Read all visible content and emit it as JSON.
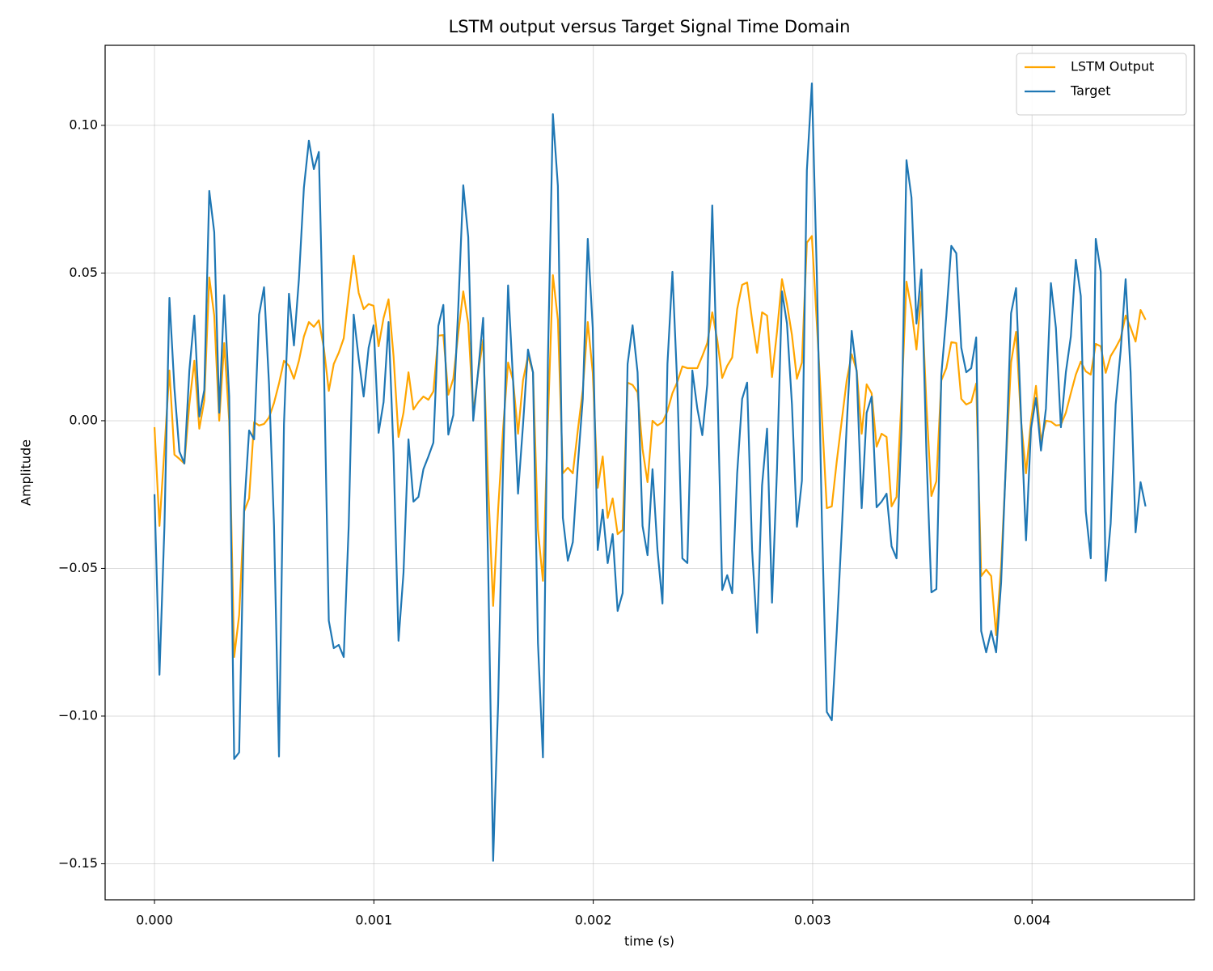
{
  "chart_data": {
    "type": "line",
    "title": "LSTM output versus Target Signal Time Domain",
    "x_label": "time (s)",
    "y_label": "Amplitude",
    "x": [
      0,
      2.27e-05,
      4.54e-05,
      6.81e-05,
      9.08e-05,
      0.0001135,
      0.0001362,
      0.0001589,
      0.0001816,
      0.0002043,
      0.000227,
      0.0002497,
      0.0002724,
      0.0002951,
      0.0003178,
      0.0003405,
      0.0003632,
      0.0003859,
      0.0004086,
      0.0004313,
      0.000454,
      0.0004767,
      0.0004994,
      0.0005221,
      0.0005448,
      0.0005675,
      0.0005902,
      0.0006129,
      0.0006356,
      0.0006583,
      0.000681,
      0.0007037,
      0.0007264,
      0.0007491,
      0.0007718,
      0.0007945,
      0.0008172,
      0.0008399,
      0.0008626,
      0.0008853,
      0.000908,
      0.0009307,
      0.0009534,
      0.0009761,
      0.0009988,
      0.0010215,
      0.0010442,
      0.0010669,
      0.0010896,
      0.0011123,
      0.001135,
      0.0011577,
      0.0011804,
      0.0012031,
      0.0012258,
      0.0012485,
      0.0012712,
      0.0012939,
      0.0013166,
      0.0013393,
      0.001362,
      0.0013847,
      0.0014074,
      0.0014301,
      0.0014528,
      0.0014755,
      0.0014982,
      0.0015209,
      0.0015436,
      0.0015663,
      0.001589,
      0.0016117,
      0.0016344,
      0.0016571,
      0.0016798,
      0.0017025,
      0.0017252,
      0.0017479,
      0.0017706,
      0.0017933,
      0.001816,
      0.0018387,
      0.0018614,
      0.0018841,
      0.0019068,
      0.0019295,
      0.0019522,
      0.0019749,
      0.0019976,
      0.0020203,
      0.002043,
      0.0020657,
      0.0020884,
      0.0021111,
      0.0021338,
      0.0021565,
      0.0021792,
      0.0022019,
      0.0022246,
      0.0022473,
      0.00227,
      0.0022927,
      0.0023154,
      0.0023381,
      0.0023608,
      0.0023835,
      0.0024062,
      0.0024289,
      0.0024516,
      0.0024743,
      0.002497,
      0.0025197,
      0.0025424,
      0.0025651,
      0.0025878,
      0.0026105,
      0.0026332,
      0.0026559,
      0.0026786,
      0.0027013,
      0.002724,
      0.0027467,
      0.0027694,
      0.0027921,
      0.0028148,
      0.0028375,
      0.0028602,
      0.0028829,
      0.0029056,
      0.0029283,
      0.002951,
      0.0029737,
      0.0029964,
      0.0030191,
      0.0030418,
      0.0030645,
      0.0030872,
      0.0031099,
      0.0031326,
      0.0031553,
      0.003178,
      0.0032007,
      0.0032234,
      0.0032461,
      0.0032688,
      0.0032915,
      0.0033142,
      0.0033369,
      0.0033596,
      0.0033823,
      0.003405,
      0.0034277,
      0.0034504,
      0.0034731,
      0.0034958,
      0.0035185,
      0.0035412,
      0.0035639,
      0.0035866,
      0.0036093,
      0.003632,
      0.0036547,
      0.0036774,
      0.0037001,
      0.0037228,
      0.0037455,
      0.0037682,
      0.0037909,
      0.0038136,
      0.0038363,
      0.003859,
      0.0038817,
      0.0039044,
      0.0039271,
      0.0039498,
      0.0039725,
      0.0039952,
      0.0040179,
      0.0040406,
      0.0040633,
      0.004086,
      0.0041087,
      0.0041314,
      0.0041541,
      0.0041768,
      0.0041995,
      0.0042222,
      0.0042449,
      0.0042676,
      0.0042903,
      0.004313,
      0.0043357,
      0.0043584,
      0.0043811,
      0.0044038,
      0.0044265,
      0.0044492,
      0.0044719,
      0.0044946,
      0.0045173
    ],
    "series": [
      {
        "name": "LSTM Output",
        "color": "#ffa500",
        "values": [
          -0.0022,
          -0.0356,
          -0.0096,
          0.017,
          -0.0115,
          -0.0129,
          -0.0145,
          0.0055,
          0.0203,
          -0.0027,
          0.0068,
          0.0485,
          0.0356,
          0,
          0.0263,
          0,
          -0.08,
          -0.0658,
          -0.0307,
          -0.0263,
          -0.0005,
          -0.0016,
          -0.0011,
          0.0011,
          0.006,
          0.0126,
          0.0203,
          0.0186,
          0.0142,
          0.0203,
          0.0285,
          0.0334,
          0.0318,
          0.034,
          0.0247,
          0.0101,
          0.0192,
          0.023,
          0.0279,
          0.0427,
          0.0559,
          0.0433,
          0.0378,
          0.0395,
          0.0389,
          0.0252,
          0.0348,
          0.0411,
          0.0219,
          -0.0055,
          0.0027,
          0.0164,
          0.0038,
          0.0063,
          0.0082,
          0.0071,
          0.0099,
          0.0288,
          0.029,
          0.0088,
          0.0142,
          0.0296,
          0.0438,
          0.0329,
          0.0027,
          0.0164,
          0.0274,
          -0.0219,
          -0.0627,
          -0.0301,
          -0.0027,
          0.0197,
          0.0137,
          -0.0044,
          0.0137,
          0.0219,
          0.0164,
          -0.037,
          -0.0542,
          0,
          0.0493,
          0.0342,
          -0.0178,
          -0.0159,
          -0.0178,
          -0.0033,
          0.0104,
          0.0334,
          0.0164,
          -0.0227,
          -0.0121,
          -0.0329,
          -0.0263,
          -0.0384,
          -0.037,
          0.0129,
          0.0121,
          0.0096,
          -0.0096,
          -0.0208,
          0,
          -0.0016,
          -0.0005,
          0.0033,
          0.0093,
          0.0132,
          0.0184,
          0.0178,
          0.0178,
          0.0178,
          0.0219,
          0.0263,
          0.0367,
          0.0274,
          0.0145,
          0.0186,
          0.0214,
          0.0378,
          0.046,
          0.0468,
          0.034,
          0.023,
          0.0367,
          0.0356,
          0.0148,
          0.0301,
          0.0479,
          0.0395,
          0.029,
          0.0142,
          0.0197,
          0.0603,
          0.0625,
          0.0329,
          0.0022,
          -0.0296,
          -0.029,
          -0.0137,
          0,
          0.0137,
          0.0225,
          0.017,
          -0.0044,
          0.0123,
          0.0093,
          -0.0088,
          -0.0044,
          -0.0055,
          -0.029,
          -0.0258,
          0.0071,
          0.0471,
          0.0378,
          0.0241,
          0.0438,
          0.0055,
          -0.0255,
          -0.0205,
          0.0137,
          0.0178,
          0.0266,
          0.0263,
          0.0074,
          0.0055,
          0.0063,
          0.0126,
          -0.0526,
          -0.0504,
          -0.0526,
          -0.0726,
          -0.0493,
          -0.0137,
          0.0197,
          0.0301,
          0,
          -0.0178,
          0,
          0.0118,
          -0.0068,
          0,
          -0.0003,
          -0.0016,
          -0.0014,
          0.0027,
          0.0093,
          0.0156,
          0.02,
          0.0167,
          0.0156,
          0.026,
          0.0252,
          0.0162,
          0.0219,
          0.0247,
          0.0279,
          0.0356,
          0.0315,
          0.0268,
          0.0375,
          0.0342
        ]
      },
      {
        "name": "Target",
        "color": "#1f77b4",
        "values": [
          -0.0249,
          -0.086,
          -0.0356,
          0.0416,
          0.011,
          -0.0104,
          -0.0145,
          0.017,
          0.0356,
          0.0014,
          0.0104,
          0.0778,
          0.0638,
          0.0027,
          0.0425,
          0.0082,
          -0.1145,
          -0.1123,
          -0.0301,
          -0.0033,
          -0.0063,
          0.0359,
          0.0452,
          0.0123,
          -0.0356,
          -0.1137,
          -0.0011,
          0.043,
          0.0255,
          0.0479,
          0.0789,
          0.0948,
          0.0852,
          0.091,
          0.0205,
          -0.0677,
          -0.077,
          -0.0759,
          -0.08,
          -0.0356,
          0.0359,
          0.0211,
          0.0082,
          0.0247,
          0.0323,
          -0.0041,
          0.0063,
          0.0334,
          -0.011,
          -0.0745,
          -0.0515,
          -0.0063,
          -0.0274,
          -0.0258,
          -0.0164,
          -0.0121,
          -0.0074,
          0.0321,
          0.0392,
          -0.0047,
          0.0019,
          0.0384,
          0.0797,
          0.0622,
          0,
          0.017,
          0.0348,
          -0.0493,
          -0.149,
          -0.0959,
          -0.0145,
          0.0458,
          0.0137,
          -0.0247,
          -0.0014,
          0.0241,
          0.0164,
          -0.0753,
          -0.114,
          0.0205,
          0.1038,
          0.0795,
          -0.0329,
          -0.0474,
          -0.0411,
          -0.0151,
          0.0074,
          0.0616,
          0.0315,
          -0.0438,
          -0.0301,
          -0.0482,
          -0.0384,
          -0.0644,
          -0.0584,
          0.0192,
          0.0323,
          0.0164,
          -0.0356,
          -0.0455,
          -0.0164,
          -0.0438,
          -0.0619,
          0.0192,
          0.0504,
          0.011,
          -0.0466,
          -0.0482,
          0.017,
          0.0041,
          -0.0049,
          0.0123,
          0.0729,
          0.0137,
          -0.0573,
          -0.0523,
          -0.0584,
          -0.0178,
          0.0074,
          0.0129,
          -0.0438,
          -0.0718,
          -0.0219,
          -0.0027,
          -0.0616,
          -0.0164,
          0.0438,
          0.0329,
          0.0055,
          -0.0359,
          -0.0203,
          0.0849,
          0.1142,
          0.0493,
          -0.0329,
          -0.0986,
          -0.1014,
          -0.0712,
          -0.0373,
          -0.0014,
          0.0304,
          0.0164,
          -0.0296,
          0.0027,
          0.0082,
          -0.0293,
          -0.0274,
          -0.0247,
          -0.0425,
          -0.0466,
          -0.0027,
          0.0882,
          0.0756,
          0.0329,
          0.0512,
          -0.011,
          -0.0581,
          -0.057,
          0.0156,
          0.0356,
          0.0592,
          0.0567,
          0.0247,
          0.0164,
          0.0178,
          0.0282,
          -0.0712,
          -0.0784,
          -0.0712,
          -0.0784,
          -0.0548,
          -0.0123,
          0.0364,
          0.0449,
          0.0014,
          -0.0405,
          -0.0027,
          0.0077,
          -0.0101,
          0.0041,
          0.0466,
          0.0315,
          -0.0022,
          0.0164,
          0.0285,
          0.0545,
          0.0422,
          -0.0307,
          -0.0466,
          0.0616,
          0.0504,
          -0.0542,
          -0.0348,
          0.0055,
          0.0236,
          0.0479,
          0.0164,
          -0.0378,
          -0.0208,
          -0.029
        ]
      }
    ],
    "xlim": [
      -0.000225,
      0.00474
    ],
    "ylim": [
      -0.1622,
      0.1271
    ],
    "xticks": [
      {
        "value": 0,
        "label": "0.000"
      },
      {
        "value": 0.001,
        "label": "0.001"
      },
      {
        "value": 0.002,
        "label": "0.002"
      },
      {
        "value": 0.003,
        "label": "0.003"
      },
      {
        "value": 0.004,
        "label": "0.004"
      }
    ],
    "yticks": [
      {
        "value": -0.15,
        "label": "−0.15"
      },
      {
        "value": -0.1,
        "label": "−0.10"
      },
      {
        "value": -0.05,
        "label": "−0.05"
      },
      {
        "value": 0,
        "label": "0.00"
      },
      0.05,
      {
        "value": 0.1,
        "label": "0.10"
      }
    ],
    "grid": true,
    "legend": "upper right"
  }
}
